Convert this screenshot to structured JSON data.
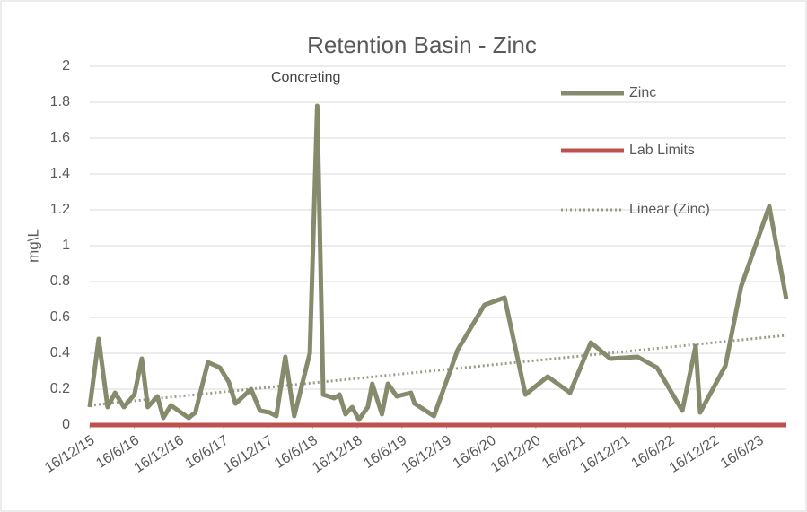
{
  "chart_data": {
    "type": "line",
    "title": "Retention Basin - Zinc",
    "annotation": "Concreting",
    "y_label": "mg\\L",
    "ylim": [
      0,
      2
    ],
    "yticks": [
      0,
      0.2,
      0.4,
      0.6,
      0.8,
      1,
      1.2,
      1.4,
      1.6,
      1.8,
      2
    ],
    "xlim": [
      0,
      93.7
    ],
    "xticks": [
      {
        "value": 0,
        "label": "16/12/15"
      },
      {
        "value": 6,
        "label": "16/6/16"
      },
      {
        "value": 12,
        "label": "16/12/16"
      },
      {
        "value": 18,
        "label": "16/6/17"
      },
      {
        "value": 24,
        "label": "16/12/17"
      },
      {
        "value": 30,
        "label": "16/6/18"
      },
      {
        "value": 36,
        "label": "16/12/18"
      },
      {
        "value": 42,
        "label": "16/6/19"
      },
      {
        "value": 48,
        "label": "16/12/19"
      },
      {
        "value": 54,
        "label": "16/6/20"
      },
      {
        "value": 60,
        "label": "16/12/20"
      },
      {
        "value": 66,
        "label": "16/6/21"
      },
      {
        "value": 72,
        "label": "16/12/21"
      },
      {
        "value": 78,
        "label": "16/6/22"
      },
      {
        "value": 84,
        "label": "16/12/22"
      },
      {
        "value": 90,
        "label": "16/6/23"
      }
    ],
    "grid": true,
    "legend": "upper right",
    "series": [
      {
        "name": "Zinc",
        "color": "#868b6d",
        "style": "solid",
        "x": [
          0,
          1.2,
          2.4,
          3.4,
          4.6,
          6,
          7,
          7.8,
          9.1,
          9.9,
          10.9,
          13.3,
          14.2,
          15.9,
          17.5,
          18.7,
          19.6,
          21.7,
          22.9,
          24.2,
          25.1,
          26.3,
          27.5,
          29.6,
          30.6,
          31.4,
          32.9,
          33.6,
          34.4,
          35.3,
          36.2,
          37.4,
          38,
          39.3,
          40.1,
          41.3,
          43.2,
          43.7,
          46.3,
          49.5,
          53.1,
          55.8,
          58.6,
          61.6,
          64.6,
          67.4,
          70,
          73.7,
          76.3,
          79.7,
          81.5,
          82.1,
          85.5,
          87.6,
          91.4,
          93.7
        ],
        "values": [
          0.1,
          0.48,
          0.1,
          0.18,
          0.1,
          0.17,
          0.37,
          0.1,
          0.16,
          0.04,
          0.11,
          0.04,
          0.07,
          0.35,
          0.32,
          0.24,
          0.12,
          0.2,
          0.08,
          0.07,
          0.05,
          0.38,
          0.05,
          0.4,
          1.78,
          0.17,
          0.15,
          0.17,
          0.06,
          0.1,
          0.03,
          0.1,
          0.23,
          0.06,
          0.23,
          0.16,
          0.18,
          0.12,
          0.05,
          0.42,
          0.67,
          0.71,
          0.17,
          0.27,
          0.18,
          0.46,
          0.37,
          0.38,
          0.32,
          0.08,
          0.44,
          0.07,
          0.33,
          0.77,
          1.22,
          0.7
        ]
      },
      {
        "name": "Lab Limits",
        "color": "#c0504d",
        "style": "solid",
        "x": [
          0,
          93.7
        ],
        "values": [
          0,
          0
        ]
      },
      {
        "name": "Linear (Zinc)",
        "color": "#9a9c86",
        "style": "dotted",
        "x": [
          0,
          93.7
        ],
        "values": [
          0.11,
          0.5
        ]
      }
    ]
  }
}
